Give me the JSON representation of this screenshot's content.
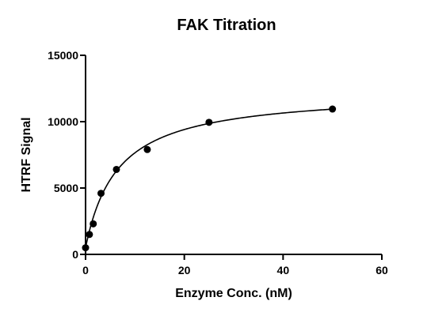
{
  "chart_data": {
    "type": "scatter",
    "title": "FAK Titration",
    "xlabel": "Enzyme Conc. (nM)",
    "ylabel": "HTRF Signal",
    "xlim": [
      0,
      60
    ],
    "ylim": [
      0,
      15000
    ],
    "xticks": [
      0,
      20,
      40,
      60
    ],
    "yticks": [
      0,
      5000,
      10000,
      15000
    ],
    "grid": false,
    "legend": "none",
    "series": [
      {
        "points": [
          {
            "x": 0,
            "y": 500
          },
          {
            "x": 0.78,
            "y": 1500
          },
          {
            "x": 1.56,
            "y": 2300
          },
          {
            "x": 3.13,
            "y": 4600
          },
          {
            "x": 6.25,
            "y": 6400
          },
          {
            "x": 12.5,
            "y": 7900
          },
          {
            "x": 25,
            "y": 9950
          },
          {
            "x": 50,
            "y": 10950
          }
        ]
      }
    ],
    "fit": {
      "model": "one-site saturation with baseline",
      "bottom": 500,
      "bmax": 11800,
      "kd": 6.5,
      "x_range": [
        0,
        50
      ]
    }
  }
}
